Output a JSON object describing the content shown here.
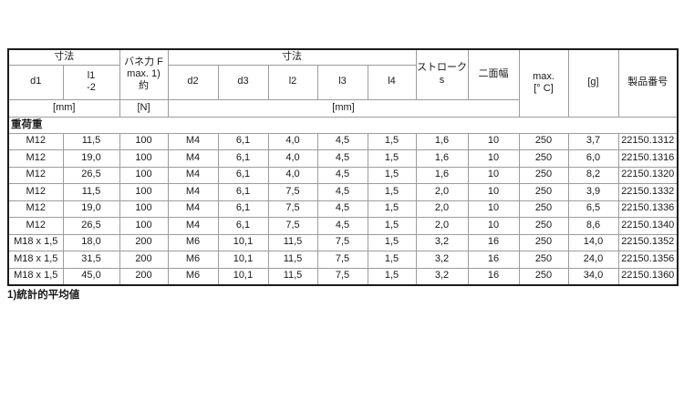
{
  "table": {
    "header": {
      "dim_left": "寸法",
      "force_lines": [
        "バネ力 F",
        "max. 1)",
        "約"
      ],
      "dim_right": "寸法",
      "stroke_lines": [
        "ストローク",
        "s"
      ],
      "hex_width": "二面幅",
      "temp_lines": [
        "max.",
        "[° C]"
      ],
      "grams": "[g]",
      "product": "製品番号",
      "d1": "d1",
      "l1_lines": [
        "l1",
        "-2"
      ],
      "d2": "d2",
      "d3": "d3",
      "l2": "l2",
      "l3": "l3",
      "l4": "l4",
      "mm_left": "[mm]",
      "n_unit": "[N]",
      "mm_right": "[mm]"
    },
    "group_label": "重荷重",
    "rows": [
      [
        "M12",
        "11,5",
        "100",
        "M4",
        "6,1",
        "4,0",
        "4,5",
        "1,5",
        "1,6",
        "10",
        "250",
        "3,7",
        "22150.1312"
      ],
      [
        "M12",
        "19,0",
        "100",
        "M4",
        "6,1",
        "4,0",
        "4,5",
        "1,5",
        "1,6",
        "10",
        "250",
        "6,0",
        "22150.1316"
      ],
      [
        "M12",
        "26,5",
        "100",
        "M4",
        "6,1",
        "4,0",
        "4,5",
        "1,5",
        "1,6",
        "10",
        "250",
        "8,2",
        "22150.1320"
      ],
      [
        "M12",
        "11,5",
        "100",
        "M4",
        "6,1",
        "7,5",
        "4,5",
        "1,5",
        "2,0",
        "10",
        "250",
        "3,9",
        "22150.1332"
      ],
      [
        "M12",
        "19,0",
        "100",
        "M4",
        "6,1",
        "7,5",
        "4,5",
        "1,5",
        "2,0",
        "10",
        "250",
        "6,5",
        "22150.1336"
      ],
      [
        "M12",
        "26,5",
        "100",
        "M4",
        "6,1",
        "7,5",
        "4,5",
        "1,5",
        "2,0",
        "10",
        "250",
        "8,6",
        "22150.1340"
      ],
      [
        "M18 x 1,5",
        "18,0",
        "200",
        "M6",
        "10,1",
        "11,5",
        "7,5",
        "1,5",
        "3,2",
        "16",
        "250",
        "14,0",
        "22150.1352"
      ],
      [
        "M18 x 1,5",
        "31,5",
        "200",
        "M6",
        "10,1",
        "11,5",
        "7,5",
        "1,5",
        "3,2",
        "16",
        "250",
        "24,0",
        "22150.1356"
      ],
      [
        "M18 x 1,5",
        "45,0",
        "200",
        "M6",
        "10,1",
        "11,5",
        "7,5",
        "1,5",
        "3,2",
        "16",
        "250",
        "34,0",
        "22150.1360"
      ]
    ],
    "footnote": "1)統計的平均値"
  },
  "colors": {
    "background": "#ffffff",
    "grid_line": "#9c9c9c",
    "outer_border": "#1a1a1a",
    "text": "#1a1a1a"
  }
}
